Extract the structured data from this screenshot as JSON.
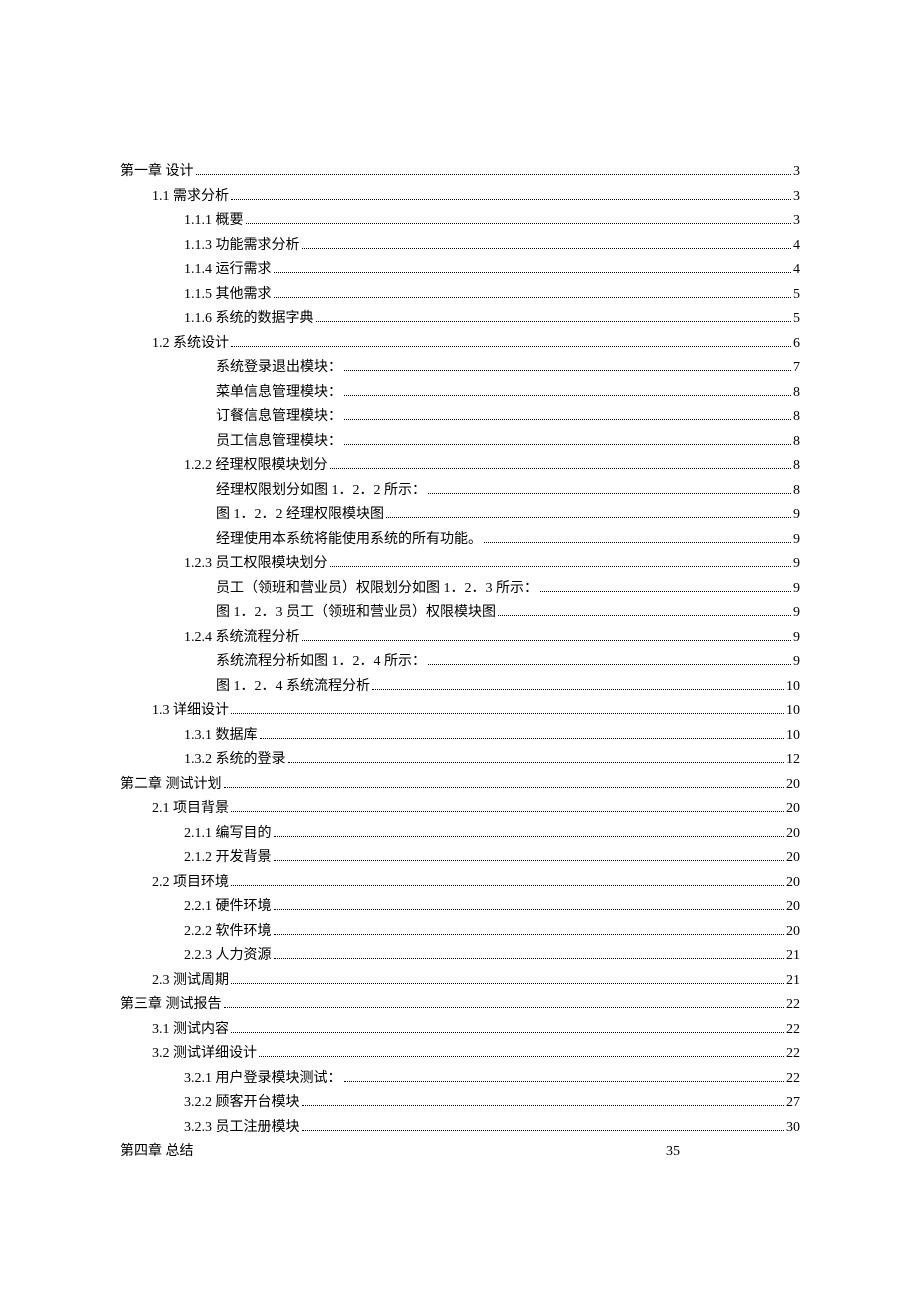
{
  "font": {
    "family": "SimSun",
    "size": 14,
    "color": "#000000"
  },
  "background": "#ffffff",
  "toc": [
    {
      "indent": 0,
      "label": "第一章  设计",
      "page": "3",
      "dots": true
    },
    {
      "indent": 1,
      "label": "1.1 需求分析",
      "page": "3",
      "dots": true
    },
    {
      "indent": 2,
      "label": "1.1.1 概要",
      "page": "3",
      "dots": true
    },
    {
      "indent": 2,
      "label": "1.1.3 功能需求分析",
      "page": "4",
      "dots": true
    },
    {
      "indent": 2,
      "label": "1.1.4 运行需求",
      "page": "4",
      "dots": true
    },
    {
      "indent": 2,
      "label": "1.1.5 其他需求",
      "page": "5",
      "dots": true
    },
    {
      "indent": 2,
      "label": "1.1.6 系统的数据字典",
      "page": "5",
      "dots": true
    },
    {
      "indent": 1,
      "label": "1.2  系统设计",
      "page": "6",
      "dots": true
    },
    {
      "indent": 3,
      "label": "系统登录退出模块：",
      "page": "7",
      "dots": true
    },
    {
      "indent": 3,
      "label": "菜单信息管理模块：",
      "page": "8",
      "dots": true
    },
    {
      "indent": 3,
      "label": "订餐信息管理模块：",
      "page": "8",
      "dots": true
    },
    {
      "indent": 3,
      "label": "员工信息管理模块：",
      "page": "8",
      "dots": true
    },
    {
      "indent": 2,
      "label": "1.2.2  经理权限模块划分",
      "page": "8",
      "dots": true
    },
    {
      "indent": 3,
      "label": "经理权限划分如图 1．2．2 所示：",
      "page": "8",
      "dots": true
    },
    {
      "indent": 3,
      "label": "图 1．2．2  经理权限模块图",
      "page": "9",
      "dots": true
    },
    {
      "indent": 3,
      "label": "经理使用本系统将能使用系统的所有功能。",
      "page": "9",
      "dots": true
    },
    {
      "indent": 2,
      "label": "1.2.3  员工权限模块划分",
      "page": "9",
      "dots": true
    },
    {
      "indent": 3,
      "label": "员工（领班和营业员）权限划分如图 1．2．3 所示：",
      "page": "9",
      "dots": true
    },
    {
      "indent": 3,
      "label": "图 1．2．3  员工（领班和营业员）权限模块图",
      "page": "9",
      "dots": true
    },
    {
      "indent": 2,
      "label": "1.2.4  系统流程分析",
      "page": "9",
      "dots": true
    },
    {
      "indent": 3,
      "label": "系统流程分析如图 1．2．4 所示：",
      "page": "9",
      "dots": true
    },
    {
      "indent": 3,
      "label": "图 1．2．4  系统流程分析",
      "page": "10",
      "dots": true
    },
    {
      "indent": 1,
      "label": "1.3  详细设计",
      "page": "10",
      "dots": true
    },
    {
      "indent": 2,
      "label": "1.3.1  数据库",
      "page": "10",
      "dots": true
    },
    {
      "indent": 2,
      "label": "1.3.2  系统的登录",
      "page": "12",
      "dots": true
    },
    {
      "indent": 0,
      "label": "第二章  测试计划",
      "page": "20",
      "dots": true
    },
    {
      "indent": 1,
      "label": "2.1  项目背景",
      "page": "20",
      "dots": true
    },
    {
      "indent": 2,
      "label": "2.1.1 编写目的",
      "page": "20",
      "dots": true
    },
    {
      "indent": 2,
      "label": "2.1.2 开发背景",
      "page": "20",
      "dots": true
    },
    {
      "indent": 1,
      "label": "2.2 项目环境",
      "page": "20",
      "dots": true
    },
    {
      "indent": 2,
      "label": "2.2.1 硬件环境",
      "page": "20",
      "dots": true
    },
    {
      "indent": 2,
      "label": "2.2.2 软件环境",
      "page": "20",
      "dots": true
    },
    {
      "indent": 2,
      "label": "2.2.3 人力资源",
      "page": "21",
      "dots": true
    },
    {
      "indent": 1,
      "label": "2.3  测试周期",
      "page": "21",
      "dots": true
    },
    {
      "indent": 0,
      "label": "第三章  测试报告",
      "page": "22",
      "dots": true
    },
    {
      "indent": 1,
      "label": "3.1 测试内容",
      "page": "22",
      "dots": true
    },
    {
      "indent": 1,
      "label": "3.2 测试详细设计",
      "page": "22",
      "dots": true
    },
    {
      "indent": 2,
      "label": "3.2.1 用户登录模块测试：",
      "page": "22",
      "dots": true
    },
    {
      "indent": 2,
      "label": "3.2.2 顾客开台模块",
      "page": "27",
      "dots": true
    },
    {
      "indent": 2,
      "label": "3.2.3 员工注册模块",
      "page": "30",
      "dots": true
    },
    {
      "indent": 0,
      "label": "第四章  总结",
      "page": "35",
      "dots": false
    }
  ]
}
